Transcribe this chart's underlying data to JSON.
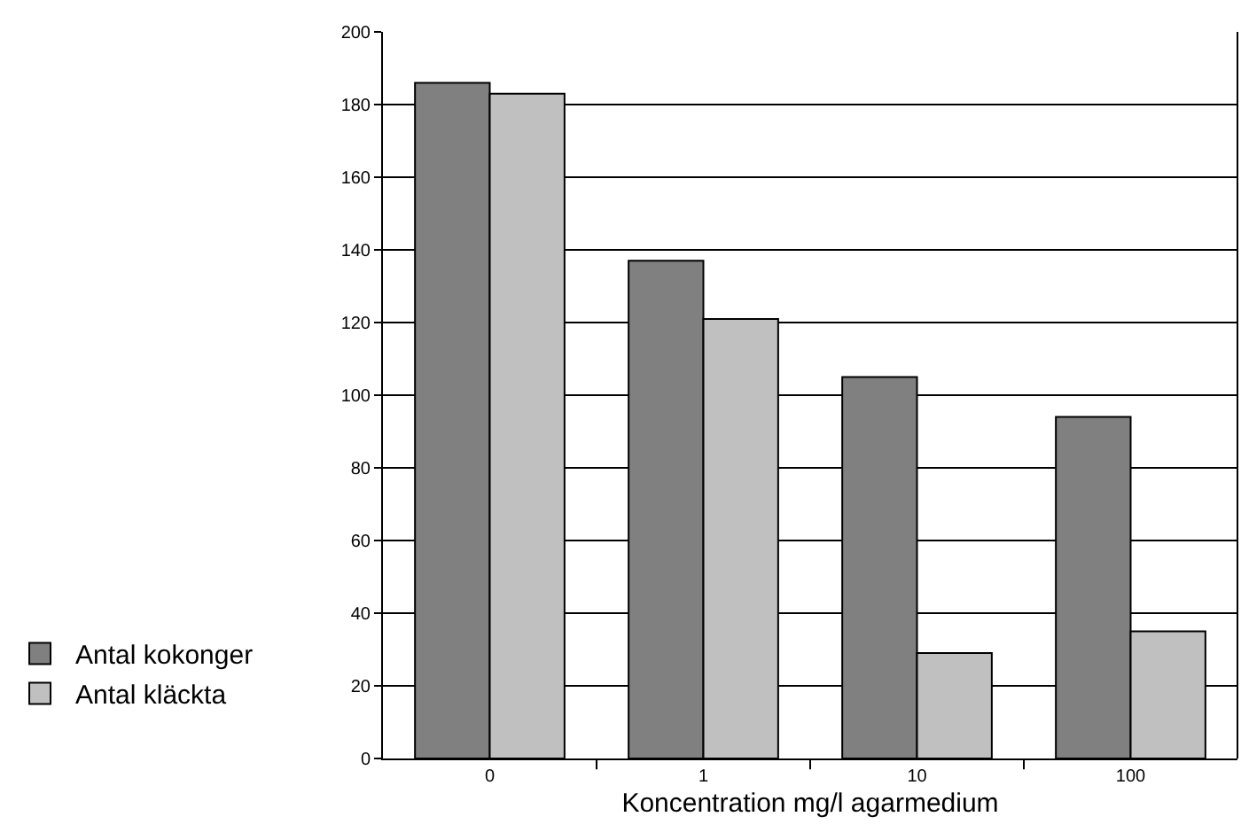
{
  "chart_data": {
    "type": "bar",
    "xlabel": "Koncentration mg/l agarmedium",
    "categories": [
      "0",
      "1",
      "10",
      "100"
    ],
    "series": [
      {
        "name": "Antal kokonger",
        "color": "#808080",
        "values": [
          186,
          137,
          105,
          94
        ]
      },
      {
        "name": "Antal kläckta",
        "color": "#c0c0c0",
        "values": [
          183,
          121,
          29,
          35
        ]
      }
    ],
    "ylim": [
      0,
      200
    ],
    "yticks": [
      0,
      20,
      40,
      60,
      80,
      100,
      120,
      140,
      160,
      180,
      200
    ],
    "grid": "y",
    "legend": "left"
  }
}
